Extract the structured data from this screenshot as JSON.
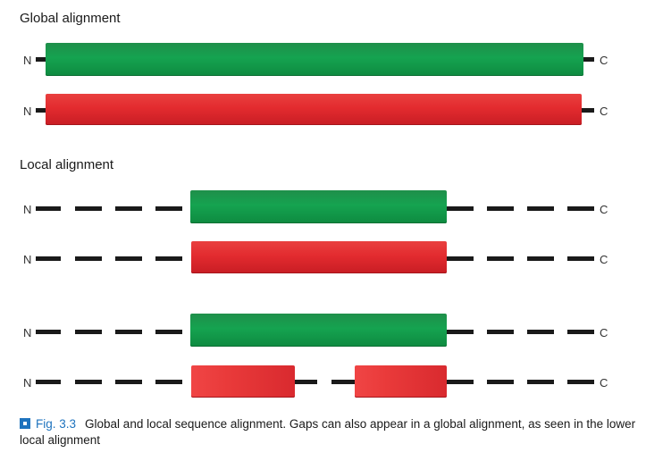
{
  "sections": {
    "global_title": "Global alignment",
    "local_title": "Local alignment"
  },
  "labels": {
    "n": "N",
    "c": "C"
  },
  "caption": {
    "figure_number": "Fig. 3.3",
    "text": "Global and local sequence alignment. Gaps can also appear in a global alignment, as seen in the lower local alignment"
  },
  "colors": {
    "green": "#15a350",
    "red": "#e32b2f",
    "line": "#1a1a1a",
    "caption_accent": "#1e73be"
  }
}
